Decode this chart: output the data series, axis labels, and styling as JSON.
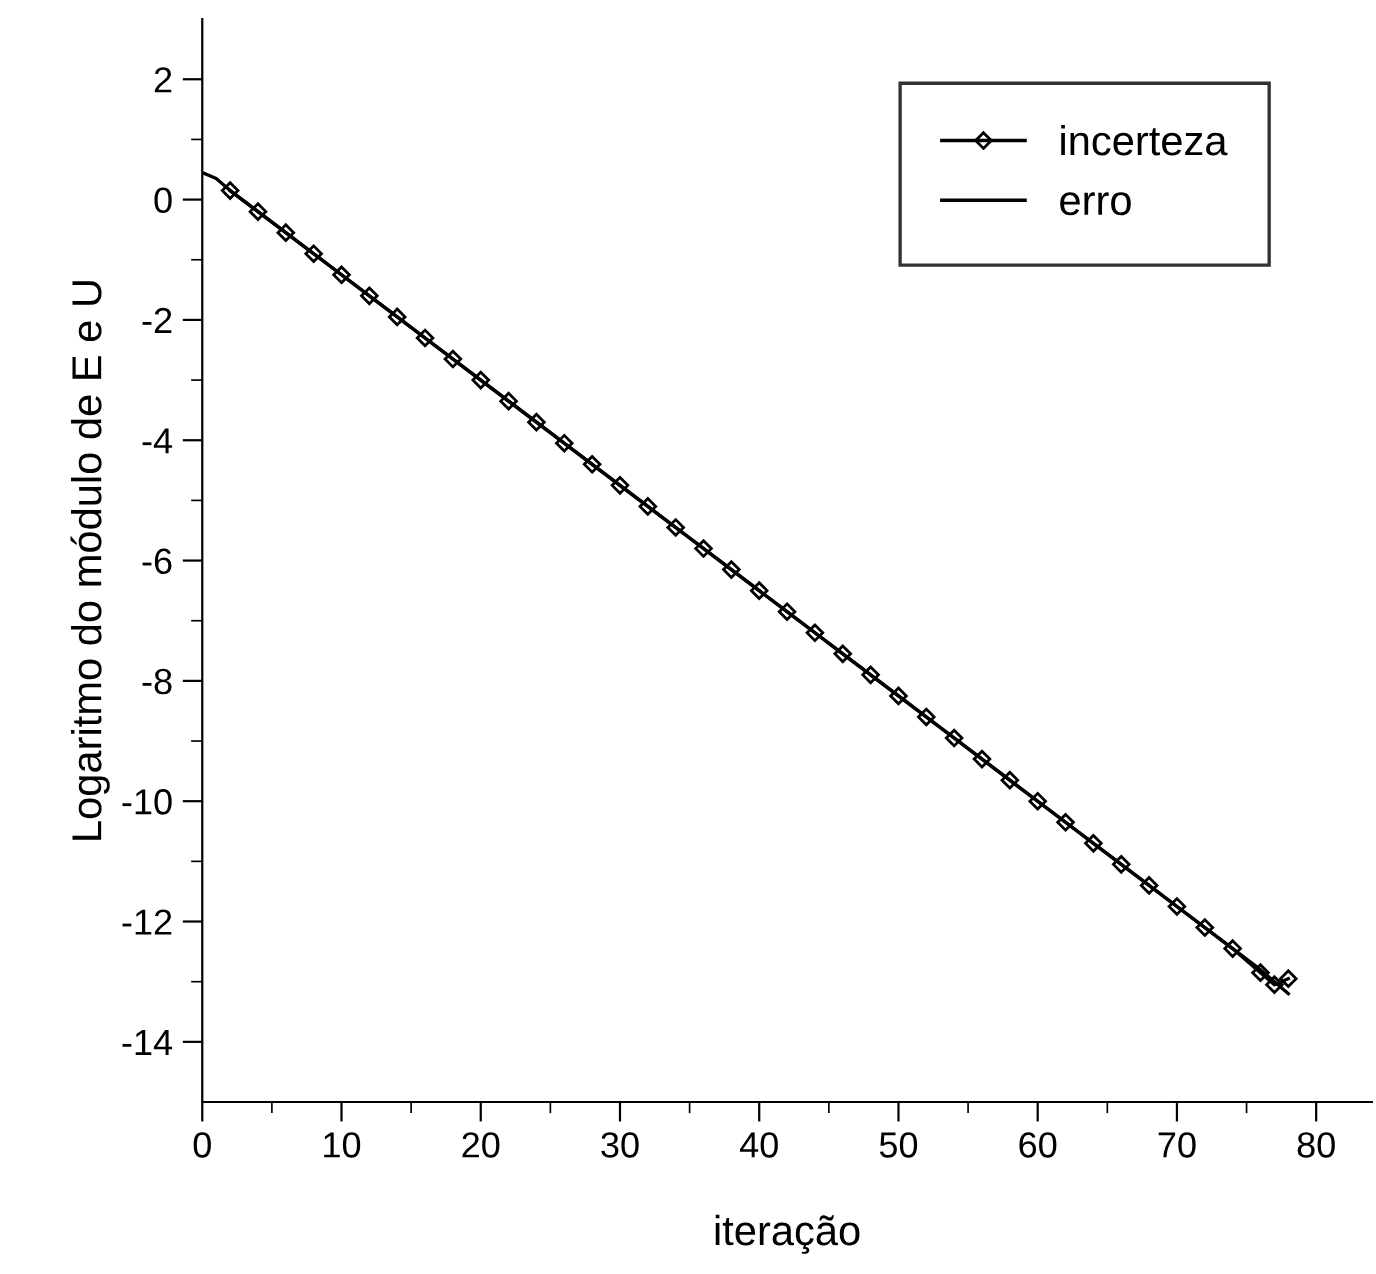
{
  "chart_data": {
    "type": "line",
    "xlabel": "iteração",
    "ylabel": "Logaritmo do módulo de E e U",
    "xlim": [
      0,
      84
    ],
    "xticks": [
      0,
      10,
      20,
      30,
      40,
      50,
      60,
      70,
      80
    ],
    "ylim": [
      -15,
      3
    ],
    "yticks": [
      -14,
      -12,
      -10,
      -8,
      -6,
      -4,
      -2,
      0,
      2
    ],
    "grid": false,
    "legend": "top right",
    "series": [
      {
        "name": "incerteza",
        "color": "#000000",
        "marker": "diamond",
        "x": [
          2,
          4,
          6,
          8,
          10,
          12,
          14,
          16,
          18,
          20,
          22,
          24,
          26,
          28,
          30,
          32,
          34,
          36,
          38,
          40,
          42,
          44,
          46,
          48,
          50,
          52,
          54,
          56,
          58,
          60,
          62,
          64,
          66,
          68,
          70,
          72,
          74,
          76,
          77,
          78
        ],
        "values": [
          0.15,
          -0.2,
          -0.55,
          -0.9,
          -1.25,
          -1.6,
          -1.95,
          -2.3,
          -2.65,
          -3.0,
          -3.35,
          -3.7,
          -4.05,
          -4.4,
          -4.75,
          -5.1,
          -5.45,
          -5.8,
          -6.15,
          -6.5,
          -6.85,
          -7.2,
          -7.55,
          -7.9,
          -8.25,
          -8.6,
          -8.95,
          -9.3,
          -9.65,
          -10.0,
          -10.35,
          -10.7,
          -11.05,
          -11.4,
          -11.75,
          -12.1,
          -12.45,
          -12.85,
          -13.05,
          -12.95
        ]
      },
      {
        "name": "erro",
        "color": "#000000",
        "marker": "none",
        "x": [
          0,
          1,
          2,
          10,
          20,
          30,
          40,
          50,
          60,
          70,
          76,
          78
        ],
        "values": [
          0.45,
          0.35,
          0.15,
          -1.25,
          -3.0,
          -4.75,
          -6.5,
          -8.25,
          -10.0,
          -11.75,
          -12.8,
          -13.2
        ]
      }
    ]
  }
}
